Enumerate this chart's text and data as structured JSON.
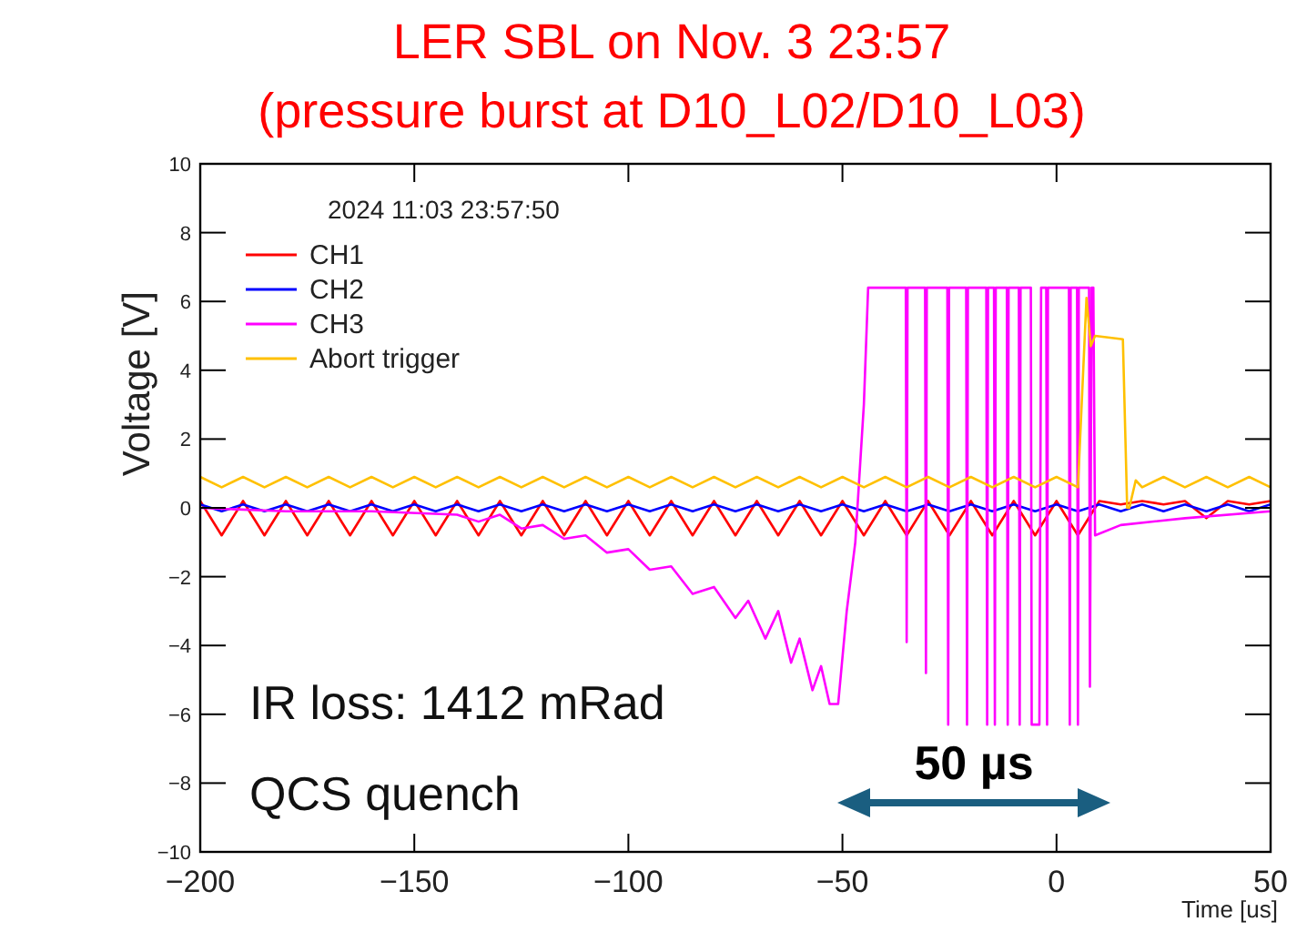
{
  "chart_data": {
    "type": "line",
    "title": "LER SBL on Nov. 3 23:57",
    "subtitle": "(pressure burst at D10_L02/D10_L03)",
    "xlabel": "Time [us]",
    "ylabel": "Voltage [V]",
    "xlim": [
      -200,
      50
    ],
    "xticks": [
      -200,
      -150,
      -100,
      -50,
      0,
      50
    ],
    "ylim": [
      -10,
      10
    ],
    "yticks": [
      -10,
      -8,
      -6,
      -4,
      -2,
      0,
      2,
      4,
      6,
      8,
      10
    ],
    "grid": false,
    "legend": "top left",
    "marker": "none",
    "line_style": "solid",
    "annotations": [
      "2024 11:03 23:57:50",
      "IR loss: 1412 mRad",
      "QCS quench",
      "50 µs"
    ],
    "series": [
      {
        "name": "CH1",
        "color": "#ff0000",
        "x": [
          -200,
          -195,
          -190,
          -185,
          -180,
          -175,
          -170,
          -165,
          -160,
          -155,
          -150,
          -145,
          -140,
          -135,
          -130,
          -125,
          -120,
          -115,
          -110,
          -105,
          -100,
          -95,
          -90,
          -85,
          -80,
          -75,
          -70,
          -65,
          -60,
          -55,
          -50,
          -45,
          -40,
          -35,
          -30,
          -25,
          -20,
          -15,
          -10,
          -5,
          0,
          5,
          10,
          15,
          20,
          25,
          30,
          35,
          40,
          45,
          50
        ],
        "values": [
          0.2,
          -0.8,
          0.2,
          -0.8,
          0.2,
          -0.8,
          0.2,
          -0.8,
          0.2,
          -0.8,
          0.2,
          -0.8,
          0.2,
          -0.8,
          0.2,
          -0.8,
          0.2,
          -0.8,
          0.2,
          -0.8,
          0.2,
          -0.8,
          0.2,
          -0.8,
          0.2,
          -0.8,
          0.2,
          -0.8,
          0.2,
          -0.8,
          0.2,
          -0.8,
          0.2,
          -0.8,
          0.2,
          -0.8,
          0.2,
          -0.8,
          0.2,
          -0.8,
          0.2,
          -0.8,
          0.2,
          0.1,
          0.2,
          0.1,
          0.2,
          -0.3,
          0.2,
          0.1,
          0.2
        ]
      },
      {
        "name": "CH2",
        "color": "#0000ff",
        "x": [
          -200,
          -195,
          -190,
          -185,
          -180,
          -175,
          -170,
          -165,
          -160,
          -155,
          -150,
          -145,
          -140,
          -135,
          -130,
          -125,
          -120,
          -115,
          -110,
          -105,
          -100,
          -95,
          -90,
          -85,
          -80,
          -75,
          -70,
          -65,
          -60,
          -55,
          -50,
          -45,
          -40,
          -35,
          -30,
          -25,
          -20,
          -15,
          -10,
          -5,
          0,
          5,
          10,
          15,
          20,
          25,
          30,
          35,
          40,
          45,
          50
        ],
        "values": [
          0.1,
          -0.1,
          0.1,
          -0.1,
          0.1,
          -0.1,
          0.1,
          -0.1,
          0.1,
          -0.1,
          0.1,
          -0.1,
          0.1,
          -0.1,
          0.1,
          -0.1,
          0.1,
          -0.1,
          0.1,
          -0.1,
          0.1,
          -0.1,
          0.1,
          -0.1,
          0.1,
          -0.1,
          0.1,
          -0.1,
          0.1,
          -0.1,
          0.1,
          -0.1,
          0.1,
          -0.1,
          0.1,
          -0.1,
          0.1,
          -0.1,
          0.1,
          -0.1,
          0.1,
          -0.1,
          0.1,
          -0.1,
          0.1,
          -0.1,
          0.1,
          -0.1,
          0.1,
          -0.1,
          0.1
        ]
      },
      {
        "name": "CH3",
        "color": "#ff00ff",
        "x": [
          -200,
          -180,
          -160,
          -140,
          -135,
          -130,
          -125,
          -120,
          -115,
          -110,
          -105,
          -100,
          -95,
          -90,
          -85,
          -80,
          -75,
          -72,
          -68,
          -65,
          -62,
          -60,
          -57,
          -55,
          -53,
          -51,
          -49,
          -47,
          -45,
          -44,
          -35.2,
          -35,
          -34.8,
          -30.7,
          -30.5,
          -30.3,
          -25.5,
          -25.3,
          -25.1,
          -21.1,
          -20.9,
          -20.7,
          -16.4,
          -16.2,
          -16,
          -14.6,
          -14.4,
          -14.2,
          -11.6,
          -11.4,
          -11.2,
          -8.8,
          -8.6,
          -8.4,
          -6,
          -5.8,
          -5,
          -4,
          -3.6,
          -2.4,
          -2.2,
          -2,
          2.9,
          3.1,
          3.3,
          4.8,
          5,
          5.2,
          7.6,
          7.8,
          8.2,
          8.6,
          9,
          15,
          30,
          50
        ],
        "values": [
          0,
          -0.1,
          -0.1,
          -0.2,
          -0.4,
          -0.2,
          -0.6,
          -0.5,
          -0.9,
          -0.8,
          -1.3,
          -1.2,
          -1.8,
          -1.7,
          -2.5,
          -2.3,
          -3.2,
          -2.7,
          -3.8,
          -3,
          -4.5,
          -3.8,
          -5.3,
          -4.6,
          -5.7,
          -5.7,
          -3,
          -1,
          3,
          6.4,
          6.4,
          -3.9,
          6.4,
          6.4,
          -4.8,
          6.4,
          6.4,
          -6.3,
          6.4,
          6.4,
          -6.3,
          6.4,
          6.4,
          -6.3,
          6.4,
          6.4,
          -6.3,
          6.4,
          6.4,
          -6.3,
          6.4,
          6.4,
          -6.3,
          6.4,
          6.4,
          -6.3,
          -6.3,
          -6.3,
          6.4,
          6.4,
          -6.3,
          6.4,
          6.4,
          -6.3,
          6.4,
          6.4,
          -6.3,
          6.4,
          6.4,
          -5.2,
          6.4,
          6.4,
          -0.8,
          -0.5,
          -0.3,
          -0.1
        ]
      },
      {
        "name": "Abort trigger",
        "color": "#ffc000",
        "x": [
          -200,
          -195,
          -190,
          -185,
          -180,
          -175,
          -170,
          -165,
          -160,
          -155,
          -150,
          -145,
          -140,
          -135,
          -130,
          -125,
          -120,
          -115,
          -110,
          -105,
          -100,
          -95,
          -90,
          -85,
          -80,
          -75,
          -70,
          -65,
          -60,
          -55,
          -50,
          -45,
          -40,
          -35,
          -30,
          -25,
          -20,
          -15,
          -10,
          -5,
          0,
          5,
          7,
          8,
          9,
          15.5,
          16.5,
          17,
          18.5,
          20,
          25,
          30,
          35,
          40,
          45,
          50
        ],
        "values": [
          0.9,
          0.6,
          0.9,
          0.6,
          0.9,
          0.6,
          0.9,
          0.6,
          0.9,
          0.6,
          0.9,
          0.6,
          0.9,
          0.6,
          0.9,
          0.6,
          0.9,
          0.6,
          0.9,
          0.6,
          0.9,
          0.6,
          0.9,
          0.6,
          0.9,
          0.6,
          0.9,
          0.6,
          0.9,
          0.6,
          0.9,
          0.6,
          0.9,
          0.6,
          0.9,
          0.6,
          0.9,
          0.6,
          0.9,
          0.6,
          0.9,
          0.6,
          6.1,
          4.7,
          5,
          4.9,
          0,
          0,
          0.8,
          0.6,
          0.9,
          0.6,
          0.9,
          0.6,
          0.9,
          0.6
        ]
      }
    ]
  }
}
